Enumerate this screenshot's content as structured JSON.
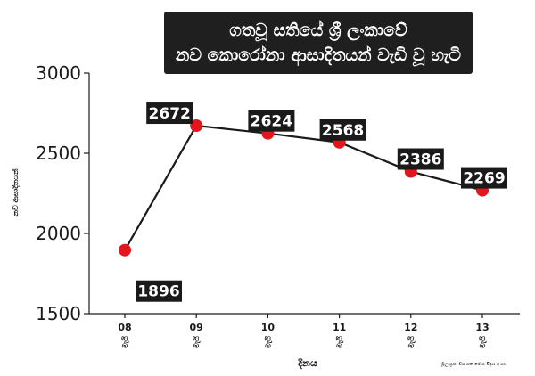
{
  "chart_data": {
    "type": "line",
    "title": [
      "ගතවූ සතියේ ශ්‍රී ලංකාවේ",
      "නව කොරෝනා ආසාදිතයන් වැඩි වූ හැටි"
    ],
    "xlabel": "දිනය",
    "ylabel": "නව ආසාදිතයන්",
    "categories": [
      "08",
      "09",
      "10",
      "11",
      "12",
      "13"
    ],
    "month_label": "මැයි",
    "values": [
      1896,
      2672,
      2624,
      2568,
      2386,
      2269
    ],
    "data_labels": [
      "1896",
      "2672",
      "2624",
      "2568",
      "2386",
      "2269"
    ],
    "yticks": [
      "3000",
      "2500",
      "2000",
      "1500"
    ],
    "ylim": [
      1500,
      3000
    ],
    "grid": false,
    "source": "මූලාශ්‍රය: වසංගත රෝග විද්‍යා අංශය",
    "colors": {
      "line": "#1a1a1a",
      "marker": "#e3161e",
      "label_bg": "#1a1a1a",
      "label_text": "#ffffff"
    }
  }
}
